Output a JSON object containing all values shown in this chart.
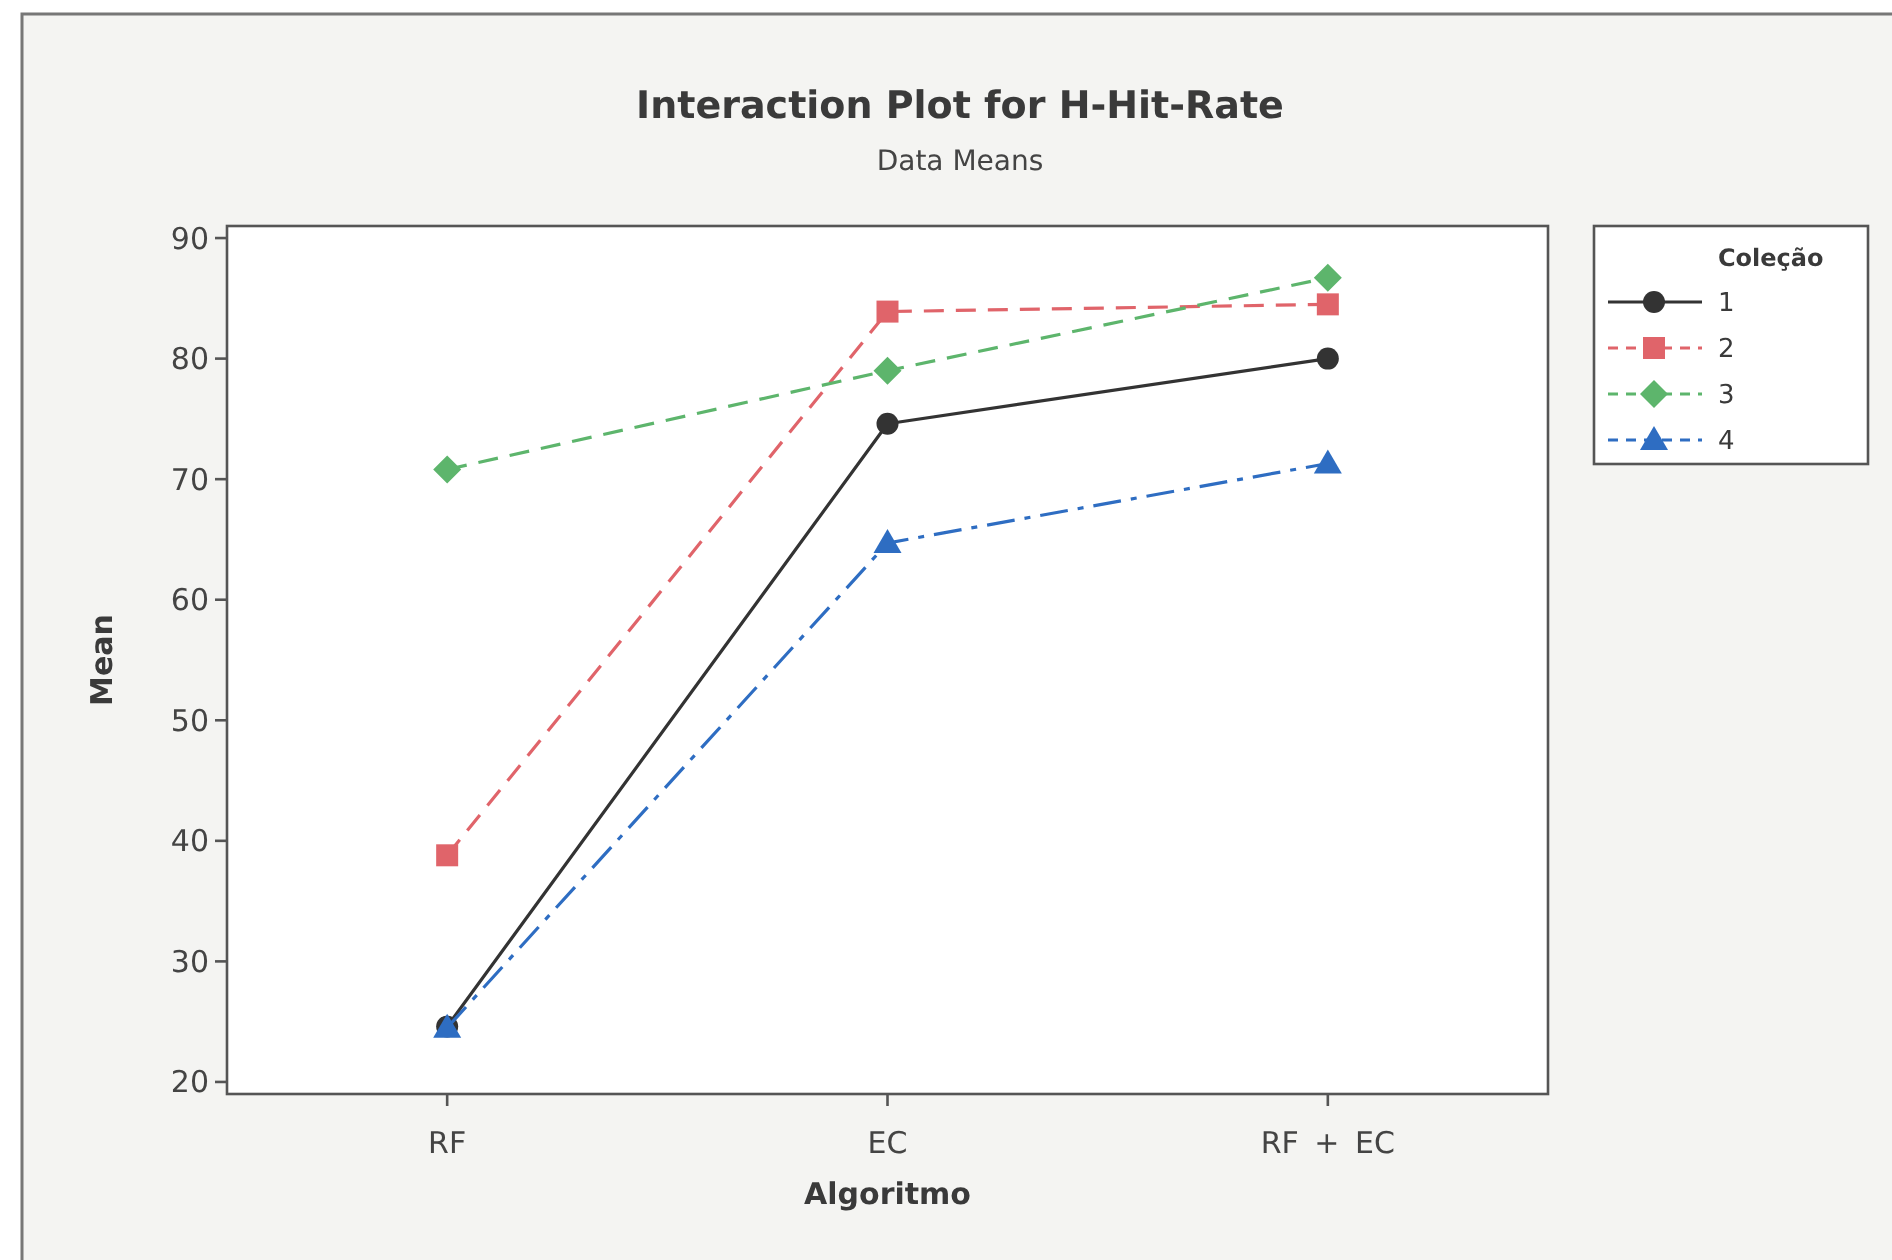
{
  "chart_data": {
    "type": "line",
    "title": "Interaction Plot for H-Hit-Rate",
    "subtitle": "Data Means",
    "xlabel": "Algoritmo",
    "ylabel": "Mean",
    "legend_title": "Coleção",
    "categories": [
      "RF",
      "EC",
      "RF + EC"
    ],
    "series": [
      {
        "name": "1",
        "color": "#333333",
        "values": [
          24.6,
          74.6,
          80.0
        ],
        "marker": "circle",
        "line_style": "solid"
      },
      {
        "name": "2",
        "color": "#e0646a",
        "values": [
          38.8,
          83.9,
          84.5
        ],
        "marker": "square",
        "line_style": "dashed"
      },
      {
        "name": "3",
        "color": "#5db56c",
        "values": [
          70.8,
          79.0,
          86.7
        ],
        "marker": "diamond",
        "line_style": "dashed"
      },
      {
        "name": "4",
        "color": "#2e6dc2",
        "values": [
          24.5,
          64.7,
          71.3
        ],
        "marker": "triangle",
        "line_style": "dashdot"
      }
    ],
    "ylim": [
      19,
      91
    ],
    "yticks": [
      20,
      30,
      40,
      50,
      60,
      70,
      80,
      90
    ],
    "legend": "top right"
  }
}
